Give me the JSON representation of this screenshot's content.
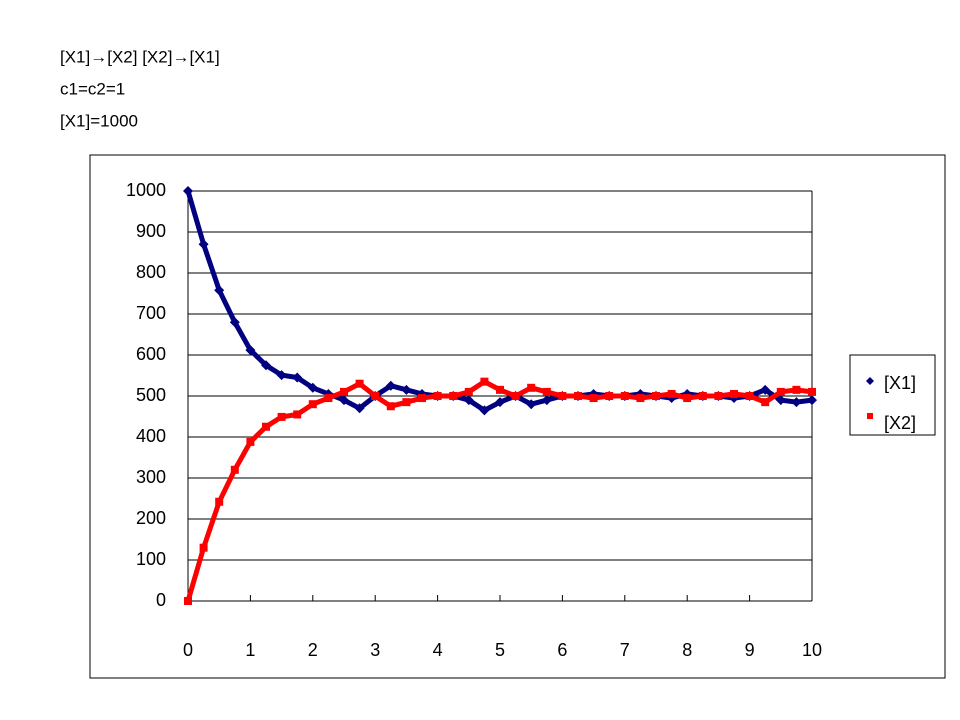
{
  "chart_data": {
    "type": "line",
    "annotations": [
      "[X1]→[X2] [X2]→[X1]",
      "c1=c2=1",
      "[X1]=1000"
    ],
    "x": [
      0,
      0.25,
      0.5,
      0.75,
      1,
      1.25,
      1.5,
      1.75,
      2,
      2.25,
      2.5,
      2.75,
      3,
      3.25,
      3.5,
      3.75,
      4,
      4.25,
      4.5,
      4.75,
      5,
      5.25,
      5.5,
      5.75,
      6,
      6.25,
      6.5,
      6.75,
      7,
      7.25,
      7.5,
      7.75,
      8,
      8.25,
      8.5,
      8.75,
      9,
      9.25,
      9.5,
      9.75,
      10
    ],
    "series": [
      {
        "name": "[X1]",
        "color": "#000080",
        "values": [
          1000,
          870,
          758,
          680,
          612,
          575,
          551,
          545,
          520,
          505,
          490,
          470,
          500,
          525,
          515,
          505,
          500,
          500,
          490,
          465,
          485,
          500,
          480,
          490,
          500,
          500,
          505,
          500,
          500,
          505,
          500,
          495,
          505,
          500,
          500,
          495,
          500,
          515,
          490,
          485,
          490
        ]
      },
      {
        "name": "[X2]",
        "color": "#ff0000",
        "values": [
          0,
          130,
          242,
          320,
          388,
          425,
          449,
          455,
          480,
          495,
          510,
          530,
          500,
          475,
          485,
          495,
          500,
          500,
          510,
          535,
          515,
          500,
          520,
          510,
          500,
          500,
          495,
          500,
          500,
          495,
          500,
          505,
          495,
          500,
          500,
          505,
          500,
          485,
          510,
          515,
          510
        ]
      }
    ],
    "xlim": [
      0,
      10
    ],
    "xticks": [
      0,
      1,
      2,
      3,
      4,
      5,
      6,
      7,
      8,
      9,
      10
    ],
    "ylim": [
      0,
      1000
    ],
    "yticks": [
      0,
      100,
      200,
      300,
      400,
      500,
      600,
      700,
      800,
      900,
      1000
    ],
    "grid": true,
    "legend": "right"
  }
}
